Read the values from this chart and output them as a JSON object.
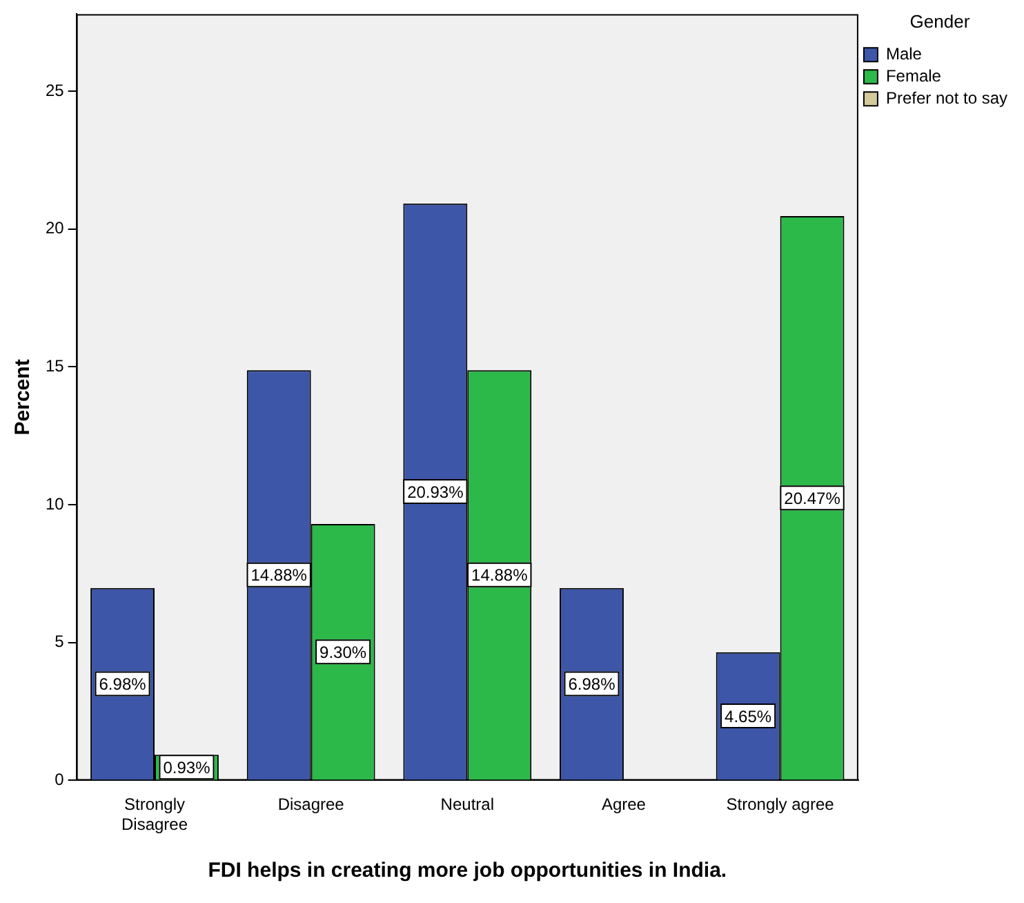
{
  "chart_data": {
    "type": "bar",
    "xlabel": "FDI helps in creating more job opportunities in India.",
    "ylabel": "Percent",
    "legend_title": "Gender",
    "legend": "top right",
    "grid": false,
    "categories": [
      "Strongly Disagree",
      "Disagree",
      "Neutral",
      "Agree",
      "Strongly agree"
    ],
    "ylim": [
      0,
      27.8
    ],
    "yticks": [
      0,
      5,
      10,
      15,
      20,
      25
    ],
    "series": [
      {
        "name": "Male",
        "color": "#3d56a8",
        "values": [
          6.98,
          14.88,
          20.93,
          6.98,
          4.65
        ],
        "value_labels": [
          "6.98%",
          "14.88%",
          "20.93%",
          "6.98%",
          "4.65%"
        ]
      },
      {
        "name": "Female",
        "color": "#2db84a",
        "values": [
          0.93,
          9.3,
          14.88,
          null,
          20.47
        ],
        "value_labels": [
          "0.93%",
          "9.30%",
          "14.88%",
          null,
          "20.47%"
        ]
      },
      {
        "name": "Prefer not to say",
        "color": "#d4cb9c",
        "values": [
          null,
          null,
          null,
          null,
          null
        ]
      }
    ]
  }
}
